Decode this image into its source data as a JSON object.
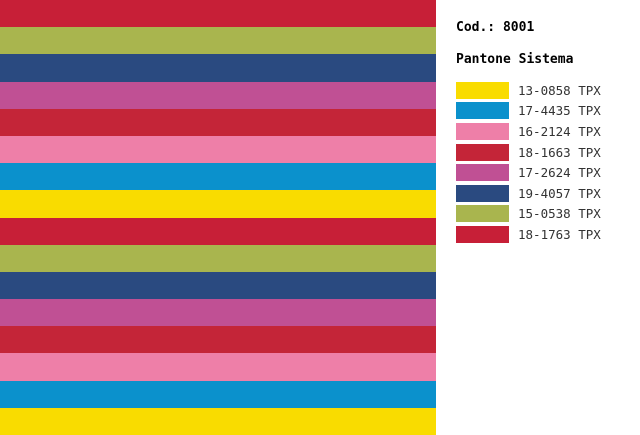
{
  "header": {
    "code": "Cod.: 8001",
    "system": "Pantone Sistema"
  },
  "stripes": [
    "#c71f37",
    "#a9b54e",
    "#2a4a80",
    "#c05094",
    "#c42538",
    "#ee7fa8",
    "#0b91cc",
    "#f9dc00",
    "#c71f37",
    "#a9b54e",
    "#2a4a80",
    "#c05094",
    "#c42538",
    "#ee7fa8",
    "#0b91cc",
    "#f9dc00"
  ],
  "swatches": [
    {
      "label": "13-0858 TPX",
      "color": "#f9dc00"
    },
    {
      "label": "17-4435 TPX",
      "color": "#0b91cc"
    },
    {
      "label": "16-2124 TPX",
      "color": "#ee7fa8"
    },
    {
      "label": "18-1663 TPX",
      "color": "#c42538"
    },
    {
      "label": "17-2624 TPX",
      "color": "#c05094"
    },
    {
      "label": "19-4057 TPX",
      "color": "#2a4a80"
    },
    {
      "label": "15-0538 TPX",
      "color": "#a9b54e"
    },
    {
      "label": "18-1763 TPX",
      "color": "#c71f37"
    }
  ]
}
